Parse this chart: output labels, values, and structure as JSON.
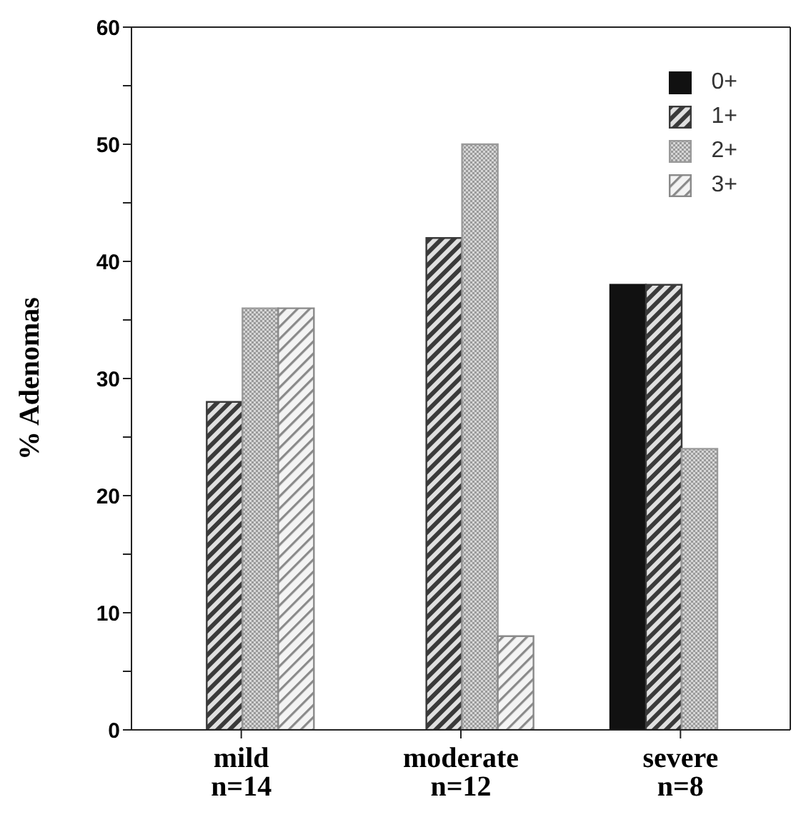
{
  "chart_data": {
    "type": "bar",
    "ylabel": "% Adenomas",
    "categories": [
      "mild\nn=14",
      "moderate\nn=12",
      "severe\nn=8"
    ],
    "series": [
      {
        "name": "0+",
        "color": "#111111",
        "values": [
          0,
          0,
          38
        ]
      },
      {
        "name": "1+",
        "color": "#3a3a3a",
        "values": [
          28,
          42,
          38
        ]
      },
      {
        "name": "2+",
        "color": "#9a9a9a",
        "values": [
          36,
          50,
          24
        ]
      },
      {
        "name": "3+",
        "color": "#8a8a8a",
        "values": [
          36,
          8,
          0
        ]
      }
    ],
    "ylim": [
      0,
      60
    ],
    "yticks": [
      0,
      {
        "value": 5,
        "label": null
      },
      10,
      {
        "value": 15,
        "label": null
      },
      20,
      {
        "value": 25,
        "label": null
      },
      30,
      {
        "value": 35,
        "label": null
      },
      40,
      {
        "value": 45,
        "label": null
      },
      50,
      {
        "value": 55,
        "label": null
      },
      60
    ],
    "legend": "top right"
  }
}
